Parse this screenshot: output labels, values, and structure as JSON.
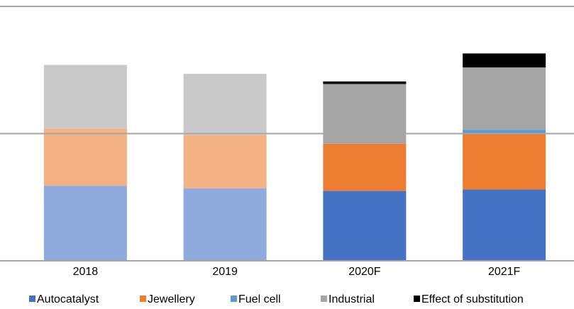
{
  "chart_data": {
    "type": "stacked_bar",
    "categories": [
      "2018",
      "2019",
      "2020F",
      "2021F"
    ],
    "series": [
      {
        "name": "Autocatalyst",
        "color": "#4472c4",
        "colors": [
          "#8faadc",
          "#8faadc",
          "#4472c4",
          "#4472c4"
        ],
        "values": [
          0.59,
          0.57,
          0.55,
          0.56
        ]
      },
      {
        "name": "Jewellery",
        "color": "#ed7d31",
        "colors": [
          "#f4b183",
          "#f4b183",
          "#ed7d31",
          "#ed7d31"
        ],
        "values": [
          0.45,
          0.42,
          0.37,
          0.44
        ]
      },
      {
        "name": "Fuel cell",
        "color": "#5b9bd5",
        "colors": [
          "#9dc3e6",
          "#9dc3e6",
          "#5b9bd5",
          "#5b9bd5"
        ],
        "values": [
          0,
          0,
          0,
          0.03
        ]
      },
      {
        "name": "Industrial",
        "color": "#a5a5a5",
        "colors": [
          "#c9c9c9",
          "#c9c9c9",
          "#a5a5a5",
          "#a5a5a5"
        ],
        "values": [
          0.5,
          0.48,
          0.47,
          0.49
        ]
      },
      {
        "name": "Effect of substitution",
        "color": "#000000",
        "colors": [
          "#000000",
          "#000000",
          "#000000",
          "#000000"
        ],
        "values": [
          0,
          0,
          0.02,
          0.11
        ]
      }
    ],
    "ylim": [
      0,
      2
    ],
    "yticks": [
      0,
      1,
      2
    ],
    "grid": true,
    "legend": "bottom"
  }
}
